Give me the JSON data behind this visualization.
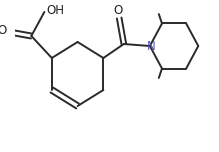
{
  "background": "#ffffff",
  "bond_color": "#2a2a2a",
  "bond_width": 1.4,
  "figsize": [
    2.19,
    1.52
  ],
  "dpi": 100,
  "xlim": [
    0,
    219
  ],
  "ylim": [
    0,
    152
  ]
}
